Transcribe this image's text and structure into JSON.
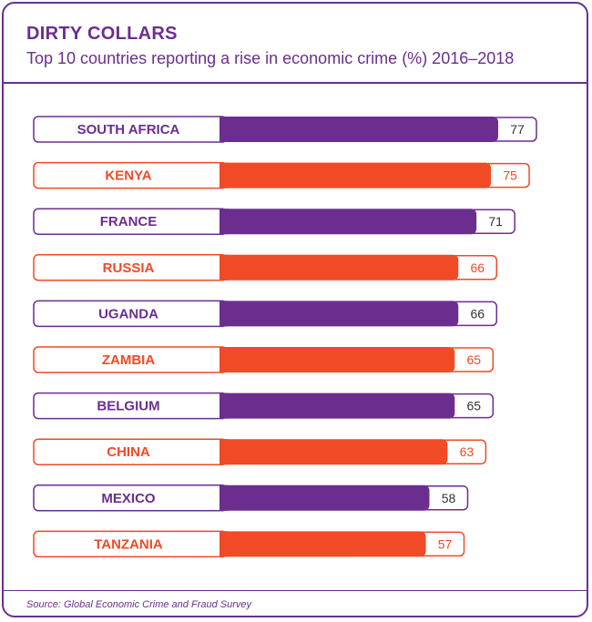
{
  "header": {
    "title": "DIRTY COLLARS",
    "subtitle": "Top 10 countries reporting a rise in economic crime (%) 2016–2018"
  },
  "footer": {
    "source": "Source: Global Economic Crime and Fraud Survey"
  },
  "colors": {
    "purple": "#6b2e8f",
    "orange": "#f04a27",
    "background": "#ffffff"
  },
  "chart_data": {
    "type": "bar",
    "orientation": "horizontal",
    "title": "DIRTY COLLARS",
    "subtitle": "Top 10 countries reporting a rise in economic crime (%) 2016–2018",
    "categories": [
      "SOUTH AFRICA",
      "KENYA",
      "FRANCE",
      "RUSSIA",
      "UGANDA",
      "ZAMBIA",
      "BELGIUM",
      "CHINA",
      "MEXICO",
      "TANZANIA"
    ],
    "values": [
      77,
      75,
      71,
      66,
      66,
      65,
      65,
      63,
      58,
      57
    ],
    "bar_colors": [
      "#6b2e8f",
      "#f04a27",
      "#6b2e8f",
      "#f04a27",
      "#6b2e8f",
      "#f04a27",
      "#6b2e8f",
      "#f04a27",
      "#6b2e8f",
      "#f04a27"
    ],
    "xlim": [
      0,
      77
    ],
    "data_labels": true,
    "grid": false
  }
}
